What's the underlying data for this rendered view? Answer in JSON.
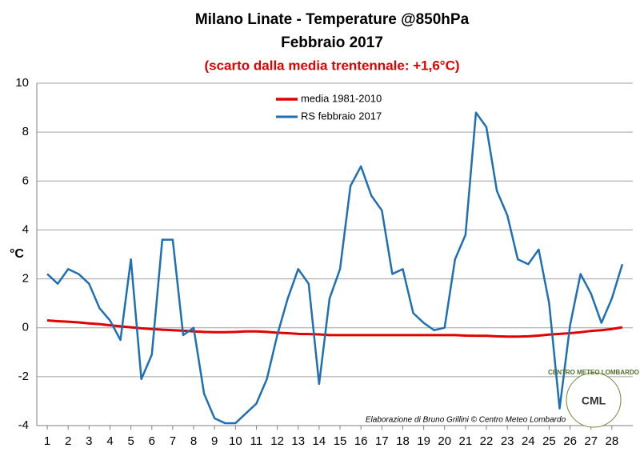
{
  "chart_data": {
    "type": "line",
    "title": "Milano Linate - Temperature @850hPa",
    "subtitle": "Febbraio 2017",
    "note": "(scarto dalla media trentennale: +1,6°C)",
    "y_label": "°C",
    "annotation": "Elaborazione di Bruno Grillini © Centro Meteo Lombardo",
    "logo": {
      "ring": "CENTRO METEO LOMBARDO",
      "initials": "CML"
    },
    "x": [
      1,
      1.5,
      2,
      2.5,
      3,
      3.5,
      4,
      4.5,
      5,
      5.5,
      6,
      6.5,
      7,
      7.5,
      8,
      8.5,
      9,
      9.5,
      10,
      10.5,
      11,
      11.5,
      12,
      12.5,
      13,
      13.5,
      14,
      14.5,
      15,
      15.5,
      16,
      16.5,
      17,
      17.5,
      18,
      18.5,
      19,
      19.5,
      20,
      20.5,
      21,
      21.5,
      22,
      22.5,
      23,
      23.5,
      24,
      24.5,
      25,
      25.5,
      26,
      26.5,
      27,
      27.5,
      28,
      28.5
    ],
    "series": [
      {
        "name": "media 1981-2010",
        "color": "#e00000",
        "width": 3,
        "values": [
          0.3,
          0.27,
          0.25,
          0.22,
          0.18,
          0.15,
          0.1,
          0.06,
          0.02,
          -0.02,
          -0.05,
          -0.08,
          -0.1,
          -0.12,
          -0.15,
          -0.17,
          -0.18,
          -0.18,
          -0.17,
          -0.15,
          -0.15,
          -0.17,
          -0.2,
          -0.22,
          -0.25,
          -0.26,
          -0.27,
          -0.3,
          -0.3,
          -0.3,
          -0.3,
          -0.3,
          -0.3,
          -0.3,
          -0.3,
          -0.3,
          -0.3,
          -0.3,
          -0.3,
          -0.3,
          -0.32,
          -0.33,
          -0.33,
          -0.35,
          -0.36,
          -0.36,
          -0.35,
          -0.32,
          -0.28,
          -0.25,
          -0.22,
          -0.18,
          -0.13,
          -0.1,
          -0.05,
          0.02
        ]
      },
      {
        "name": "RS febbraio 2017",
        "color": "#1f6fb5",
        "width": 2.5,
        "values": [
          2.2,
          1.8,
          2.4,
          2.2,
          1.8,
          0.8,
          0.3,
          -0.5,
          2.8,
          -2.1,
          -1.1,
          3.6,
          3.6,
          -0.3,
          0,
          -2.7,
          -3.7,
          -3.9,
          -3.9,
          -3.5,
          -3.1,
          -2.1,
          -0.3,
          1.2,
          2.4,
          1.8,
          -2.3,
          1.2,
          2.4,
          5.8,
          6.6,
          5.4,
          4.8,
          2.2,
          2.4,
          0.6,
          0.2,
          -0.1,
          0,
          2.8,
          3.8,
          8.8,
          8.2,
          5.6,
          4.6,
          2.8,
          2.6,
          3.2,
          1.0,
          -3.3,
          0.1,
          2.2,
          1.4,
          0.2,
          1.2,
          2.6
        ]
      }
    ],
    "xlim": [
      0.5,
      29
    ],
    "xticks": [
      1,
      2,
      3,
      4,
      5,
      6,
      7,
      8,
      9,
      10,
      11,
      12,
      13,
      14,
      15,
      16,
      17,
      18,
      19,
      20,
      21,
      22,
      23,
      24,
      25,
      26,
      27,
      28
    ],
    "ylim": [
      -4,
      10
    ],
    "yticks": [
      -4,
      -2,
      0,
      2,
      4,
      6,
      8,
      10
    ],
    "grid": true,
    "legend": "top"
  }
}
